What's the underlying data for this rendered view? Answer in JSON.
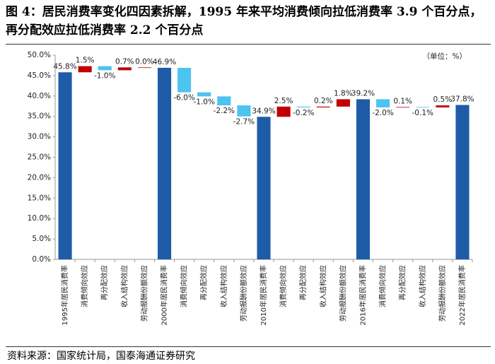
{
  "title": "图 4：居民消费率变化四因素拆解，1995 年来平均消费倾向拉低消费率 3.9 个百分点，再分配效应拉低消费率 2.2 个百分点",
  "source": "资料来源：国家统计局，国泰海通证券研究",
  "chart_data": {
    "type": "waterfall",
    "annotation": "（单位：%）",
    "categories": [
      "1995年居民消费率",
      "消费倾向效应",
      "再分配效应",
      "收入结构效应",
      "劳动报酬份额效应",
      "2000年居民消费率",
      "消费倾向效应",
      "再分配效应",
      "收入结构效应",
      "劳动报酬份额效应",
      "2010年居民消费率",
      "消费倾向效应",
      "再分配效应",
      "收入结构效应",
      "劳动报酬份额效应",
      "2016年居民消费率",
      "消费倾向效应",
      "再分配效应",
      "收入结构效应",
      "劳动报酬份额效应",
      "2022年居民消费率"
    ],
    "measure": [
      "absolute",
      "relative",
      "relative",
      "relative",
      "relative",
      "absolute",
      "relative",
      "relative",
      "relative",
      "relative",
      "absolute",
      "relative",
      "relative",
      "relative",
      "relative",
      "absolute",
      "relative",
      "relative",
      "relative",
      "relative",
      "absolute"
    ],
    "values": [
      45.8,
      1.5,
      -1.0,
      0.7,
      0.0,
      46.9,
      -6.0,
      -1.0,
      -2.2,
      -2.7,
      34.9,
      2.5,
      -0.2,
      0.2,
      1.8,
      39.2,
      -2.0,
      0.1,
      -0.1,
      0.5,
      37.8
    ],
    "value_labels": [
      "45.8%",
      "1.5%",
      "-1.0%",
      "0.7%",
      "0.0%",
      "46.9%",
      "-6.0%",
      "-1.0%",
      "-2.2%",
      "-2.7%",
      "34.9%",
      "2.5%",
      "-0.2%",
      "0.2%",
      "1.8%",
      "39.2%",
      "-2.0%",
      "0.1%",
      "-0.1%",
      "0.5%",
      "37.8%"
    ],
    "colors": {
      "total": "#1f5ca8",
      "increase": "#c00000",
      "decrease": "#4dc3f0"
    },
    "ylim": [
      0,
      50
    ],
    "yticks": [
      {
        "value": 0,
        "label": "0.0%"
      },
      {
        "value": 5,
        "label": "5.0%"
      },
      {
        "value": 10,
        "label": "10.0%"
      },
      {
        "value": 15,
        "label": "15.0%"
      },
      {
        "value": 20,
        "label": "20.0%"
      },
      {
        "value": 25,
        "label": "25.0%"
      },
      {
        "value": 30,
        "label": "30.0%"
      },
      {
        "value": 35,
        "label": "35.0%"
      },
      {
        "value": 40,
        "label": "40.0%"
      },
      {
        "value": 45,
        "label": "45.0%"
      },
      {
        "value": 50,
        "label": "50.0%"
      }
    ]
  }
}
